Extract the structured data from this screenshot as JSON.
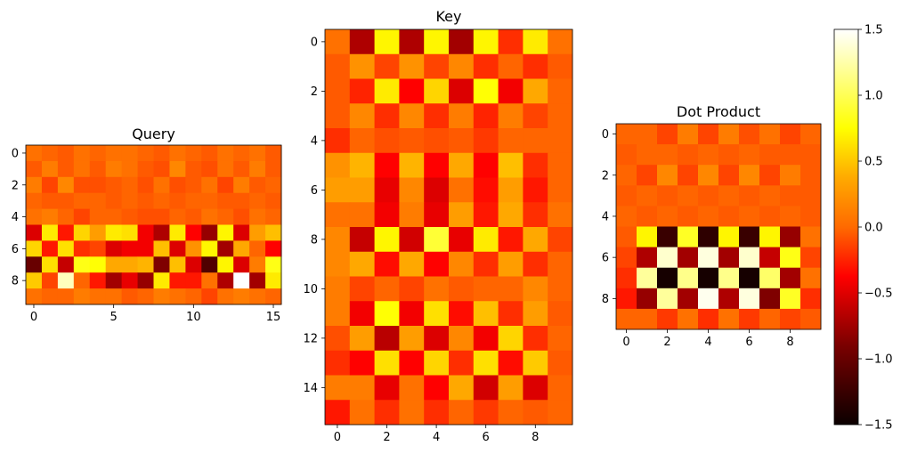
{
  "chart_data": [
    {
      "type": "heatmap",
      "title": "Query",
      "colormap": "hot",
      "rows": 10,
      "cols": 16,
      "xticks": [
        0,
        5,
        10,
        15
      ],
      "yticks": [
        0,
        2,
        4,
        6,
        8
      ],
      "values": [
        [
          0.1,
          0.05,
          0.0,
          0.1,
          0.05,
          0.1,
          0.1,
          0.05,
          0.0,
          0.1,
          0.05,
          0.0,
          0.1,
          0.05,
          0.1,
          0.0
        ],
        [
          0.0,
          0.15,
          0.0,
          0.1,
          0.0,
          0.15,
          0.1,
          0.0,
          -0.05,
          0.2,
          0.0,
          -0.05,
          0.1,
          0.0,
          0.15,
          0.0
        ],
        [
          0.15,
          -0.1,
          0.2,
          -0.05,
          -0.05,
          0.0,
          0.05,
          -0.05,
          0.1,
          -0.05,
          0.0,
          0.1,
          -0.1,
          0.15,
          0.0,
          0.05
        ],
        [
          0.05,
          0.0,
          0.0,
          0.05,
          0.05,
          0.0,
          0.05,
          0.0,
          0.05,
          0.0,
          0.05,
          0.05,
          0.0,
          0.0,
          0.05,
          0.0
        ],
        [
          0.1,
          0.15,
          0.05,
          -0.1,
          0.05,
          0.05,
          0.0,
          -0.05,
          -0.05,
          0.05,
          0.0,
          0.1,
          0.05,
          -0.05,
          0.1,
          0.05
        ],
        [
          -0.6,
          0.65,
          -0.3,
          0.55,
          0.3,
          0.65,
          0.6,
          -0.5,
          -0.8,
          0.65,
          -0.4,
          -0.9,
          0.7,
          -0.6,
          0.3,
          0.45
        ],
        [
          0.55,
          -0.3,
          0.6,
          -0.2,
          -0.1,
          -0.6,
          -0.5,
          -0.5,
          0.45,
          -0.6,
          0.25,
          0.7,
          -0.85,
          0.35,
          0.05,
          -0.4
        ],
        [
          -1.1,
          0.6,
          -0.7,
          0.8,
          0.75,
          0.35,
          0.35,
          0.4,
          -1.0,
          0.45,
          -0.6,
          -1.2,
          0.7,
          -0.6,
          0.15,
          0.8
        ],
        [
          0.5,
          -0.1,
          1.3,
          0.05,
          -0.3,
          -0.85,
          -0.55,
          -0.9,
          0.65,
          -0.3,
          -0.3,
          0.1,
          -0.8,
          1.5,
          -0.85,
          0.65
        ],
        [
          0.1,
          0.05,
          0.05,
          0.15,
          0.1,
          0.1,
          0.0,
          0.05,
          0.15,
          0.1,
          0.05,
          -0.1,
          0.1,
          0.15,
          0.1,
          0.05
        ]
      ]
    },
    {
      "type": "heatmap",
      "title": "Key",
      "colormap": "hot",
      "rows": 16,
      "cols": 10,
      "xticks": [
        0,
        2,
        4,
        6,
        8
      ],
      "yticks": [
        0,
        2,
        4,
        6,
        8,
        10,
        12,
        14
      ],
      "values": [
        [
          0.1,
          -0.8,
          0.7,
          -0.8,
          0.7,
          -0.85,
          0.7,
          -0.2,
          0.65,
          0.1
        ],
        [
          0.0,
          0.25,
          -0.1,
          0.25,
          -0.1,
          0.2,
          -0.2,
          0.05,
          -0.2,
          0.0
        ],
        [
          0.0,
          -0.25,
          0.65,
          -0.45,
          0.55,
          -0.6,
          0.75,
          -0.5,
          0.35,
          0.05
        ],
        [
          0.0,
          0.2,
          -0.2,
          0.2,
          -0.2,
          0.15,
          -0.25,
          0.15,
          -0.1,
          0.05
        ],
        [
          -0.2,
          0.05,
          -0.05,
          0.0,
          -0.05,
          0.0,
          -0.15,
          0.05,
          0.05,
          0.05
        ],
        [
          0.25,
          0.4,
          -0.45,
          0.4,
          -0.45,
          0.35,
          -0.4,
          0.45,
          -0.2,
          0.05
        ],
        [
          0.3,
          0.3,
          -0.55,
          0.2,
          -0.6,
          0.1,
          -0.35,
          0.3,
          -0.3,
          0.05
        ],
        [
          0.1,
          0.1,
          -0.5,
          0.15,
          -0.55,
          0.3,
          -0.3,
          0.35,
          -0.2,
          0.1
        ],
        [
          0.2,
          -0.7,
          0.7,
          -0.65,
          0.9,
          -0.55,
          0.65,
          -0.3,
          0.35,
          -0.1
        ],
        [
          0.2,
          0.35,
          -0.35,
          0.35,
          -0.4,
          0.2,
          -0.2,
          0.3,
          -0.2,
          0.05
        ],
        [
          0.15,
          -0.1,
          0.05,
          -0.1,
          0.1,
          0.0,
          0.05,
          0.05,
          0.2,
          0.05
        ],
        [
          0.15,
          -0.5,
          0.75,
          -0.5,
          0.6,
          -0.35,
          0.45,
          -0.2,
          0.3,
          0.0
        ],
        [
          -0.05,
          0.3,
          -0.75,
          0.3,
          -0.6,
          0.2,
          -0.5,
          0.55,
          -0.2,
          0.05
        ],
        [
          -0.2,
          -0.4,
          0.6,
          -0.45,
          0.55,
          -0.2,
          0.6,
          -0.35,
          0.5,
          0.0
        ],
        [
          0.15,
          0.15,
          -0.55,
          0.1,
          -0.45,
          0.35,
          -0.65,
          0.3,
          -0.6,
          0.05
        ],
        [
          -0.3,
          0.1,
          -0.2,
          0.1,
          -0.2,
          0.05,
          -0.15,
          0.05,
          0.0,
          0.05
        ]
      ]
    },
    {
      "type": "heatmap",
      "title": "Dot Product",
      "colormap": "hot",
      "rows": 10,
      "cols": 10,
      "xticks": [
        0,
        2,
        4,
        6,
        8
      ],
      "yticks": [
        0,
        2,
        4,
        6,
        8
      ],
      "values": [
        [
          0.05,
          0.05,
          -0.1,
          0.15,
          -0.1,
          0.15,
          -0.05,
          0.1,
          -0.1,
          0.05
        ],
        [
          0.0,
          0.05,
          0.05,
          0.0,
          0.05,
          0.0,
          0.05,
          0.0,
          0.0,
          0.0
        ],
        [
          0.05,
          -0.1,
          0.2,
          -0.1,
          0.2,
          -0.1,
          0.2,
          -0.1,
          0.15,
          0.0
        ],
        [
          0.0,
          0.05,
          0.0,
          0.05,
          0.0,
          0.05,
          0.0,
          0.05,
          0.0,
          0.0
        ],
        [
          0.05,
          0.0,
          0.05,
          0.0,
          0.05,
          0.0,
          0.05,
          0.0,
          0.05,
          0.0
        ],
        [
          0.0,
          0.7,
          -1.3,
          0.85,
          -1.35,
          0.7,
          -1.3,
          0.7,
          -0.9,
          0.1
        ],
        [
          -0.1,
          -0.8,
          1.35,
          -0.85,
          1.4,
          -0.85,
          1.35,
          -0.7,
          0.8,
          -0.1
        ],
        [
          -0.2,
          1.2,
          -1.45,
          1.15,
          -1.45,
          1.15,
          -1.45,
          1.05,
          -0.85,
          0.1
        ],
        [
          -0.3,
          -0.9,
          1.2,
          -0.85,
          1.45,
          -0.8,
          1.4,
          -1.0,
          0.85,
          -0.2
        ],
        [
          0.05,
          0.05,
          -0.15,
          0.1,
          -0.2,
          0.1,
          -0.15,
          0.05,
          -0.1,
          0.0
        ]
      ]
    },
    {
      "type": "colorbar",
      "colormap": "hot",
      "vmin": -1.5,
      "vmax": 1.5,
      "ticks": [
        1.5,
        1.0,
        0.5,
        0.0,
        -0.5,
        -1.0,
        -1.5
      ],
      "tick_labels": [
        "1.5",
        "1.0",
        "0.5",
        "0.0",
        "−0.5",
        "−1.0",
        "−1.5"
      ]
    }
  ]
}
